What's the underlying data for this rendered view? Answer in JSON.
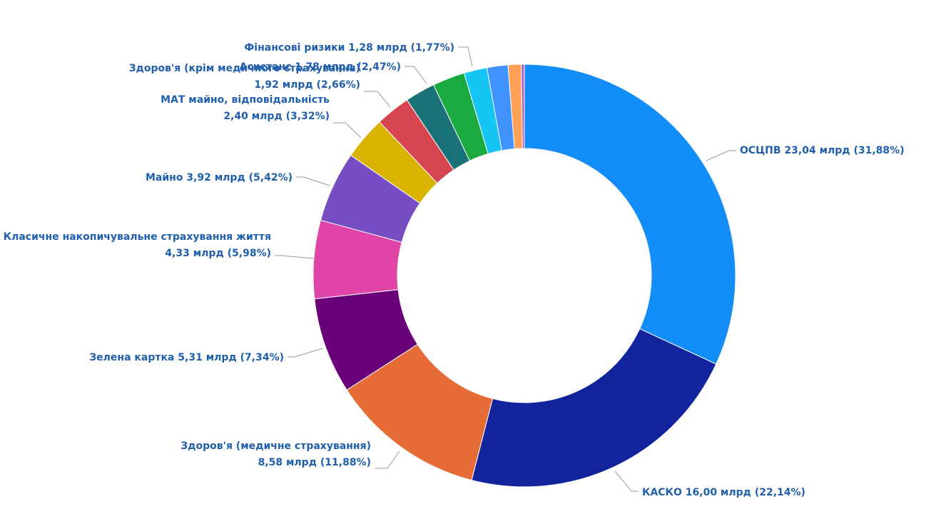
{
  "chart_data": {
    "type": "pie",
    "donut": true,
    "title": "",
    "legend": "none",
    "slices": [
      {
        "name": "ОСЦПВ",
        "amount": "23,04 млрд",
        "value": 31.88,
        "percent_label": "31,88%",
        "color": "#138df8",
        "label_lines": [
          "ОСЦПВ 23,04 млрд (31,88%)"
        ]
      },
      {
        "name": "КАСКО",
        "amount": "16,00 млрд",
        "value": 22.14,
        "percent_label": "22,14%",
        "color": "#12239e",
        "label_lines": [
          "КАСКО 16,00 млрд (22,14%)"
        ]
      },
      {
        "name": "Здоров'я (медичне страхування)",
        "amount": "8,58 млрд",
        "value": 11.88,
        "percent_label": "11,88%",
        "color": "#e66c37",
        "label_lines": [
          "Здоров'я (медичне страхування)",
          "8,58 млрд (11,88%)"
        ]
      },
      {
        "name": "Зелена картка",
        "amount": "5,31 млрд",
        "value": 7.34,
        "percent_label": "7,34%",
        "color": "#6b007b",
        "label_lines": [
          "Зелена картка 5,31 млрд (7,34%)"
        ]
      },
      {
        "name": "Класичне накопичувальне страхування життя",
        "amount": "4,33 млрд",
        "value": 5.98,
        "percent_label": "5,98%",
        "color": "#e044a7",
        "label_lines": [
          "Класичне накопичувальне страхування життя",
          "4,33 млрд (5,98%)"
        ]
      },
      {
        "name": "Майно",
        "amount": "3,92 млрд",
        "value": 5.42,
        "percent_label": "5,42%",
        "color": "#744ec2",
        "label_lines": [
          "Майно 3,92 млрд (5,42%)"
        ]
      },
      {
        "name": "МАТ майно, відповідальність",
        "amount": "2,40 млрд",
        "value": 3.32,
        "percent_label": "3,32%",
        "color": "#d9b300",
        "label_lines": [
          "МАТ майно, відповідальність",
          "2,40 млрд (3,32%)"
        ]
      },
      {
        "name": "Здоров'я (крім медичного страхування)",
        "amount": "1,92 млрд",
        "value": 2.66,
        "percent_label": "2,66%",
        "color": "#d64550",
        "label_lines": [
          "Здоров'я (крім медичного страхування)",
          "1,92 млрд (2,66%)"
        ]
      },
      {
        "name": "",
        "amount": "",
        "value": 2.3,
        "percent_label": "",
        "color": "#197278",
        "label_lines": []
      },
      {
        "name": "Асистанс",
        "amount": "1,78 млрд",
        "value": 2.47,
        "percent_label": "2,47%",
        "color": "#1aab40",
        "label_lines": [
          "Асистанс 1,78 млрд (2,47%)"
        ]
      },
      {
        "name": "Фінансові ризики",
        "amount": "1,28 млрд",
        "value": 1.77,
        "percent_label": "1,77%",
        "color": "#15c6f4",
        "label_lines": [
          "Фінансові ризики 1,28 млрд (1,77%)"
        ]
      },
      {
        "name": "",
        "amount": "",
        "value": 1.6,
        "percent_label": "",
        "color": "#4092ff",
        "label_lines": []
      },
      {
        "name": "",
        "amount": "",
        "value": 1.0,
        "percent_label": "",
        "color": "#ffa058",
        "label_lines": []
      },
      {
        "name": "",
        "amount": "",
        "value": 0.24,
        "percent_label": "",
        "color": "#be5dc9",
        "label_lines": []
      }
    ]
  }
}
